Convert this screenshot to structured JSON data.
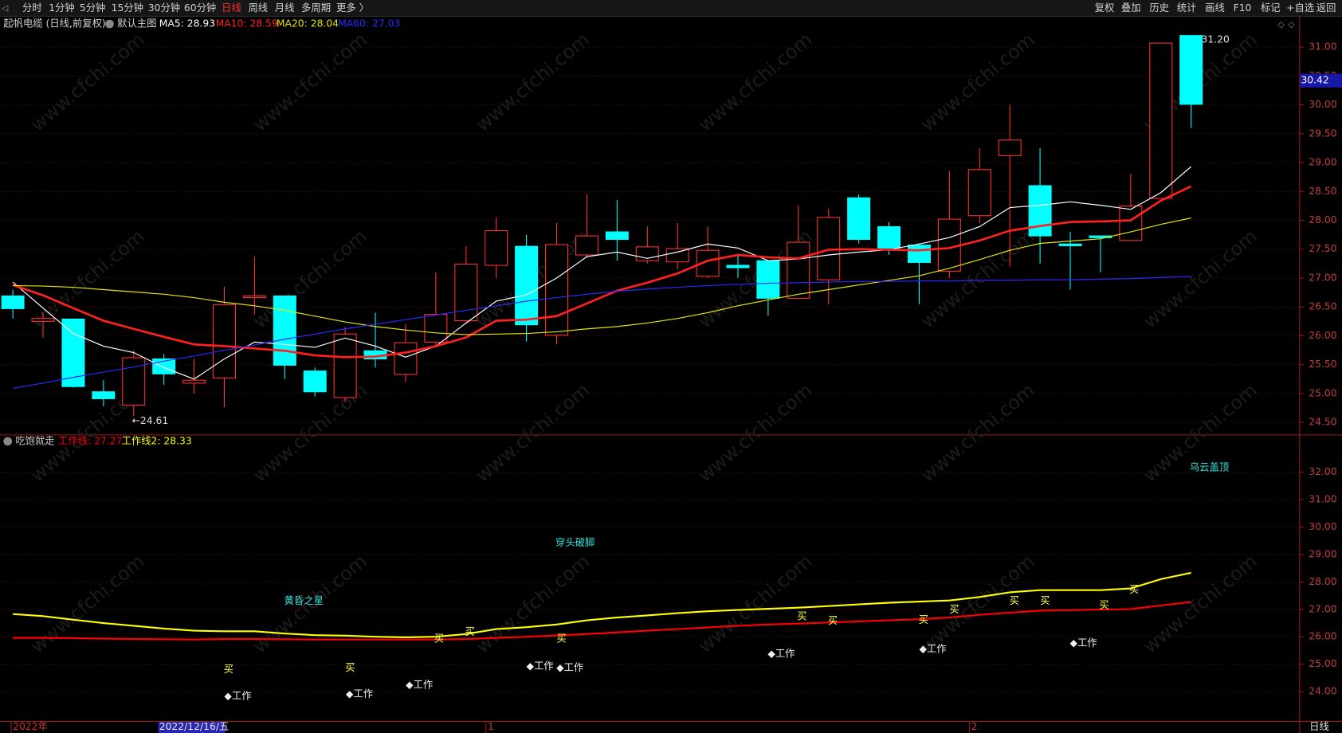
{
  "toolbar": {
    "left": [
      "分时",
      "1分钟",
      "5分钟",
      "15分钟",
      "30分钟",
      "60分钟",
      "日线",
      "周线",
      "月线",
      "多周期",
      "更多 〉"
    ],
    "right": [
      "复权",
      "叠加",
      "历史",
      "统计",
      "画线",
      "F10",
      "标记",
      "+自选",
      "返回"
    ]
  },
  "watermark": "www.cfchi.com",
  "chart_data": [
    {
      "type": "candlestick",
      "title": "起帆电缆 (日线,前复权)",
      "subtitle": "默认主图",
      "categories": [
        "2022年",
        null,
        null,
        null,
        null,
        null,
        null,
        null,
        null,
        null,
        null,
        null,
        null,
        null,
        null,
        null,
        "1",
        null,
        null,
        null,
        null,
        null,
        null,
        null,
        null,
        null,
        null,
        null,
        null,
        null,
        null,
        null,
        "2",
        null,
        null,
        null,
        null,
        null,
        null,
        null
      ],
      "cursor_date": "2022/12/16/五",
      "period": "日线",
      "open": [
        26.69,
        26.25,
        26.29,
        25.03,
        24.8,
        25.6,
        25.18,
        25.27,
        26.66,
        26.69,
        25.39,
        24.93,
        25.74,
        25.33,
        25.89,
        26.26,
        27.22,
        27.55,
        26.01,
        27.4,
        27.8,
        27.3,
        27.28,
        27.03,
        27.22,
        27.3,
        26.65,
        26.97,
        28.39,
        27.89,
        27.57,
        27.12,
        28.08,
        29.12,
        28.6,
        27.59,
        27.73,
        27.65,
        28.38,
        31.2
      ],
      "high": [
        26.8,
        26.41,
        26.29,
        25.23,
        25.75,
        25.68,
        25.6,
        26.85,
        27.37,
        26.69,
        25.45,
        26.15,
        26.4,
        26.2,
        27.1,
        27.55,
        28.05,
        27.75,
        27.95,
        28.45,
        28.35,
        27.9,
        27.95,
        27.9,
        27.4,
        27.3,
        28.25,
        28.2,
        28.45,
        27.97,
        27.6,
        28.85,
        29.25,
        30.0,
        29.25,
        27.8,
        27.73,
        28.8,
        31.07,
        31.2
      ],
      "low": [
        26.3,
        25.97,
        25.1,
        24.78,
        24.61,
        25.15,
        25.0,
        24.76,
        26.37,
        25.25,
        24.95,
        24.85,
        25.45,
        25.2,
        25.8,
        26.2,
        27.0,
        25.9,
        25.85,
        27.35,
        27.3,
        27.25,
        27.15,
        27.0,
        27.0,
        26.35,
        26.65,
        26.55,
        27.6,
        27.4,
        26.55,
        27.0,
        27.95,
        27.2,
        27.25,
        26.8,
        27.1,
        27.65,
        28.38,
        29.6
      ],
      "close": [
        26.47,
        26.3,
        25.12,
        24.91,
        25.62,
        25.34,
        25.23,
        26.54,
        26.69,
        25.49,
        25.03,
        26.03,
        25.6,
        25.88,
        26.37,
        27.24,
        27.82,
        26.19,
        27.58,
        27.73,
        27.67,
        27.54,
        27.51,
        27.48,
        27.18,
        26.65,
        27.62,
        28.05,
        27.67,
        27.52,
        27.27,
        28.02,
        28.88,
        29.39,
        27.73,
        27.56,
        27.7,
        28.25,
        31.07,
        30.01
      ],
      "up_color": "#ff3232",
      "down_color": "#00ffff",
      "series": [
        {
          "name": "MA5: 28.93",
          "color": "#ffffff",
          "values": [
            26.93,
            26.48,
            26.04,
            25.82,
            25.71,
            25.45,
            25.25,
            25.6,
            25.89,
            25.85,
            25.8,
            25.96,
            25.82,
            25.63,
            25.82,
            26.22,
            26.6,
            26.71,
            27.0,
            27.37,
            27.45,
            27.34,
            27.45,
            27.59,
            27.52,
            27.3,
            27.33,
            27.4,
            27.45,
            27.49,
            27.59,
            27.7,
            27.89,
            28.22,
            28.26,
            28.32,
            28.26,
            28.19,
            28.48,
            28.93
          ]
        },
        {
          "name": "MA10: 28.59",
          "color": "#ff2020",
          "values": [
            26.88,
            26.7,
            26.48,
            26.26,
            26.12,
            25.98,
            25.85,
            25.82,
            25.78,
            25.74,
            25.66,
            25.63,
            25.64,
            25.71,
            25.82,
            25.97,
            26.26,
            26.28,
            26.34,
            26.56,
            26.78,
            26.92,
            27.08,
            27.3,
            27.4,
            27.36,
            27.34,
            27.49,
            27.5,
            27.49,
            27.48,
            27.52,
            27.65,
            27.82,
            27.9,
            27.97,
            27.98,
            28.0,
            28.34,
            28.59
          ]
        },
        {
          "name": "MA20: 28.04",
          "color": "#e6e600",
          "values": [
            26.87,
            26.86,
            26.84,
            26.8,
            26.76,
            26.72,
            26.66,
            26.58,
            26.52,
            26.44,
            26.34,
            26.24,
            26.16,
            26.1,
            26.05,
            26.02,
            26.03,
            26.04,
            26.07,
            26.12,
            26.16,
            26.22,
            26.3,
            26.4,
            26.52,
            26.62,
            26.72,
            26.8,
            26.88,
            26.96,
            27.04,
            27.17,
            27.32,
            27.48,
            27.6,
            27.64,
            27.68,
            27.8,
            27.93,
            28.04
          ]
        },
        {
          "name": "MA60: 27.03",
          "color": "#2a2aff",
          "values": [
            25.09,
            25.18,
            25.28,
            25.37,
            25.46,
            25.56,
            25.65,
            25.75,
            25.84,
            25.94,
            26.03,
            26.12,
            26.2,
            26.28,
            26.36,
            26.44,
            26.52,
            26.6,
            26.66,
            26.72,
            26.77,
            26.81,
            26.84,
            26.87,
            26.89,
            26.91,
            26.92,
            26.93,
            26.94,
            26.94,
            26.95,
            26.95,
            26.96,
            26.96,
            26.97,
            26.97,
            26.98,
            26.99,
            27.01,
            27.03
          ]
        }
      ],
      "annotations": [
        {
          "value": 24.61,
          "label": "←24.61"
        },
        {
          "value": 31.2,
          "label": "31.20"
        }
      ],
      "price_tag": {
        "value": 30.42,
        "label": "30.42"
      },
      "ylim": [
        24.29,
        31.52
      ],
      "yticks": [
        {
          "value": 31,
          "label": "31.00"
        },
        {
          "value": 30.5,
          "label": "30.50"
        },
        {
          "value": 30,
          "label": "30.00"
        },
        {
          "value": 29.5,
          "label": "29.50"
        },
        {
          "value": 29,
          "label": "29.00"
        },
        {
          "value": 28.5,
          "label": "28.50"
        },
        {
          "value": 28,
          "label": "28.00"
        },
        {
          "value": 27.5,
          "label": "27.50"
        },
        {
          "value": 27,
          "label": "27.00"
        },
        {
          "value": 26.5,
          "label": "26.50"
        },
        {
          "value": 26,
          "label": "26.00"
        },
        {
          "value": 25.5,
          "label": "25.50"
        },
        {
          "value": 25,
          "label": "25.00"
        },
        {
          "value": 24.5,
          "label": "24.50"
        }
      ],
      "grid": true
    },
    {
      "type": "line",
      "title": "吃饱就走",
      "series": [
        {
          "name": "工作线: 27.27",
          "color": "#ff0000",
          "values": [
            25.96,
            25.96,
            25.95,
            25.93,
            25.92,
            25.91,
            25.9,
            25.92,
            25.92,
            25.91,
            25.9,
            25.9,
            25.9,
            25.9,
            25.9,
            25.92,
            25.96,
            26.0,
            26.05,
            26.1,
            26.16,
            26.22,
            26.28,
            26.34,
            26.4,
            26.45,
            26.48,
            26.52,
            26.56,
            26.6,
            26.64,
            26.7,
            26.8,
            26.88,
            26.95,
            26.97,
            26.99,
            27.01,
            27.14,
            27.27
          ]
        },
        {
          "name": "工作线2: 28.33",
          "color": "#ffff00",
          "values": [
            26.83,
            26.75,
            26.62,
            26.5,
            26.4,
            26.3,
            26.22,
            26.2,
            26.2,
            26.12,
            26.06,
            26.04,
            26.0,
            25.98,
            26.0,
            26.1,
            26.28,
            26.35,
            26.45,
            26.6,
            26.7,
            26.78,
            26.86,
            26.93,
            26.98,
            27.02,
            27.06,
            27.12,
            27.18,
            27.24,
            27.28,
            27.32,
            27.45,
            27.62,
            27.7,
            27.7,
            27.7,
            27.76,
            28.1,
            28.33
          ]
        }
      ],
      "patterns": [
        "黄昏之星",
        "穿头破脚",
        "乌云盖顶"
      ],
      "signals": {
        "buy": "买",
        "work": "◆工作"
      },
      "ylim": [
        22.93,
        33.34
      ],
      "yticks": [
        {
          "value": 32,
          "label": "32.00"
        },
        {
          "value": 31,
          "label": "31.00"
        },
        {
          "value": 30,
          "label": "30.00"
        },
        {
          "value": 29,
          "label": "29.00"
        },
        {
          "value": 28,
          "label": "28.00"
        },
        {
          "value": 27,
          "label": "27.00"
        },
        {
          "value": 26,
          "label": "26.00"
        },
        {
          "value": 25,
          "label": "25.00"
        },
        {
          "value": 24,
          "label": "24.00"
        }
      ],
      "grid": true
    }
  ]
}
